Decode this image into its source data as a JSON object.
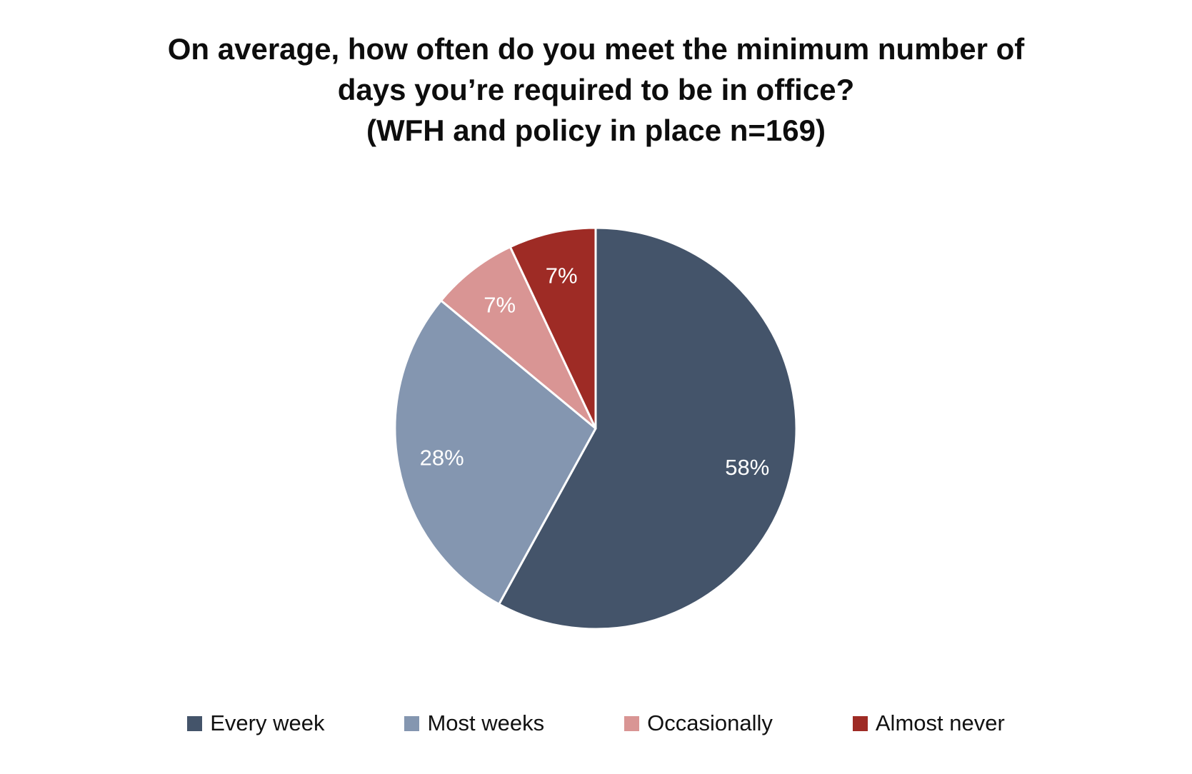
{
  "title": {
    "lines": [
      "On average, how often do you meet the minimum number of",
      "days you’re required to be in office?",
      "(WFH and policy in place n=169)"
    ]
  },
  "chart_data": {
    "type": "pie",
    "title": "On average, how often do you meet the minimum number of days you’re required to be in office? (WFH and policy in place n=169)",
    "categories": [
      "Every week",
      "Most weeks",
      "Occasionally",
      "Almost never"
    ],
    "values": [
      58,
      28,
      7,
      7
    ],
    "unit": "percent",
    "data_labels": [
      "58%",
      "28%",
      "7%",
      "7%"
    ],
    "colors": [
      "#44546A",
      "#8496B0",
      "#D99594",
      "#9E2B25"
    ],
    "slice_border_color": "#FFFFFF",
    "label_color": "#FFFFFF",
    "start_angle_deg": 0,
    "direction": "clockwise",
    "legend_position": "bottom",
    "label_radius_fraction": 0.78
  },
  "legend": {
    "items": [
      {
        "label": "Every week",
        "color": "#44546A"
      },
      {
        "label": "Most weeks",
        "color": "#8496B0"
      },
      {
        "label": "Occasionally",
        "color": "#D99594"
      },
      {
        "label": "Almost never",
        "color": "#9E2B25"
      }
    ]
  }
}
